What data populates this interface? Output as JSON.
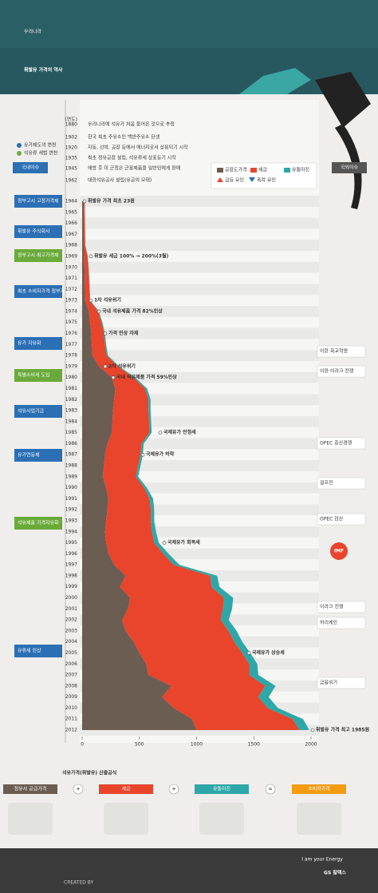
{
  "header": {
    "title_top": "우리나라",
    "title_main": "휘발유 가격의 역사"
  },
  "timeline_label": "(연도)",
  "early_events": [
    {
      "year": "1880",
      "text": "우리나라에 석유가 처음 들어온 것으로 추정"
    },
    {
      "year": "1902",
      "text": "한국 최초 주유소인 백반주유소 탄생"
    },
    {
      "year": "1920",
      "text": "자동, 선박, 공장 등에서 에너지로서 상용되기 시작"
    },
    {
      "year": "1935",
      "text": "최초 정유공장 설립, 석유류세 상표등기 시작"
    },
    {
      "year": "1945",
      "text": "해방 후 미 군정은 군용제품을 일반인에게 판매"
    },
    {
      "year": "1962",
      "text": "대한석유공사 설립(유공의 모태)"
    }
  ],
  "side_legend": [
    "유가제도의 변천",
    "석유류 세법 변천"
  ],
  "domestic_header": "국내이슈",
  "foreign_header": "국외이슈",
  "domestic_issues": [
    "정부고시 고정가격제",
    "휘발유 주식회사",
    "정부고시 최고가격제",
    "최초 소비자가격 정부가 고시",
    "유가 자유화",
    "특별소비세 도입",
    "석유사업기금",
    "유가연동제",
    "석유제품 가격자유화",
    "유류세 인상"
  ],
  "foreign_issues": [
    "이란 회교혁명",
    "이란·이라크 전쟁",
    "OPEC 증산경쟁",
    "걸프전",
    "OPEC 감산",
    "IMF",
    "이라크 전쟁",
    "허리케인",
    "금융위기"
  ],
  "chart_data": {
    "type": "stacked-area",
    "orientation": "horizontal",
    "legend": [
      "급등 요인",
      "폭락 요인"
    ],
    "categories": [
      "1964",
      "1965",
      "1966",
      "1967",
      "1968",
      "1969",
      "1970",
      "1971",
      "1972",
      "1973",
      "1974",
      "1975",
      "1976",
      "1977",
      "1978",
      "1979",
      "1980",
      "1981",
      "1982",
      "1983",
      "1984",
      "1985",
      "1986",
      "1987",
      "1988",
      "1989",
      "1990",
      "1991",
      "1992",
      "1993",
      "1994",
      "1995",
      "1996",
      "1997",
      "1998",
      "1999",
      "2000",
      "2001",
      "2002",
      "2003",
      "2004",
      "2005",
      "2006",
      "2007",
      "2008",
      "2009",
      "2010",
      "2011",
      "2012"
    ],
    "series": [
      {
        "name": "공장도가격",
        "color": "#6b5d52",
        "values": [
          15,
          15,
          16,
          16,
          17,
          18,
          20,
          22,
          24,
          26,
          60,
          70,
          80,
          85,
          90,
          150,
          260,
          290,
          280,
          270,
          265,
          260,
          220,
          200,
          190,
          180,
          210,
          230,
          220,
          210,
          200,
          210,
          230,
          280,
          380,
          330,
          420,
          400,
          350,
          380,
          450,
          500,
          560,
          580,
          780,
          700,
          800,
          960,
          1000
        ]
      },
      {
        "name": "세금",
        "color": "#e8452c",
        "values": [
          8,
          8,
          9,
          10,
          11,
          30,
          35,
          38,
          40,
          42,
          80,
          100,
          110,
          115,
          125,
          165,
          190,
          260,
          300,
          310,
          320,
          330,
          300,
          310,
          300,
          290,
          330,
          360,
          380,
          390,
          410,
          420,
          480,
          520,
          740,
          800,
          820,
          830,
          860,
          900,
          880,
          900,
          900,
          880,
          820,
          840,
          820,
          880,
          900
        ]
      },
      {
        "name": "유통마진",
        "color": "#2fa7a8",
        "values": [
          0,
          0,
          0,
          0,
          0,
          2,
          2,
          3,
          3,
          4,
          6,
          8,
          9,
          10,
          10,
          12,
          15,
          18,
          18,
          18,
          18,
          18,
          18,
          20,
          20,
          20,
          25,
          30,
          30,
          30,
          35,
          40,
          45,
          50,
          60,
          70,
          80,
          80,
          70,
          70,
          70,
          70,
          70,
          80,
          90,
          90,
          90,
          90,
          85
        ]
      }
    ],
    "xlim": [
      0,
      2000
    ],
    "xticks": [
      0,
      500,
      1000,
      1500,
      2000
    ],
    "annotations": [
      "휘발유 가격 최초 23원",
      "휘발유 세금 100% → 200%(3월)",
      "1차 석유위기",
      "국내 석유제품 가격 82%인상",
      "가격 인상 자제",
      "2차 석유위기",
      "국내 석유제품 가격 59%인상",
      "국제유가 안정세",
      "국제유가 하락",
      "국제유가 회복세",
      "국제유가 상승세",
      "휘발유 가격 최고 1985원"
    ]
  },
  "formula": {
    "title": "석유가격(휘발유) 산출공식",
    "terms": [
      "정유사 공급가격",
      "세금",
      "유통마진",
      "소비자가격"
    ],
    "ops": [
      "+",
      "+",
      "="
    ]
  },
  "footer": {
    "slogan": "I am your Energy",
    "brand": "GS 칼텍스",
    "credit": "CREATED BY"
  }
}
